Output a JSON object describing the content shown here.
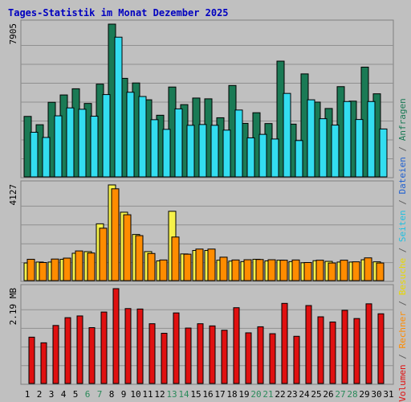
{
  "chart_data": {
    "type": "bar",
    "title": "Tages-Statistik im Monat Dezember 2025",
    "days": [
      "1",
      "2",
      "3",
      "4",
      "5",
      "6",
      "7",
      "8",
      "9",
      "10",
      "11",
      "12",
      "13",
      "14",
      "15",
      "16",
      "17",
      "18",
      "19",
      "20",
      "21",
      "22",
      "23",
      "24",
      "25",
      "26",
      "27",
      "28",
      "29",
      "30",
      "31"
    ],
    "weekend_days": [
      "6",
      "7",
      "13",
      "14",
      "20",
      "21",
      "27",
      "28"
    ],
    "panels": {
      "top": {
        "max_label": "7905",
        "max": 7905,
        "series": [
          {
            "name": "Anfragen",
            "color": "#1a7a55",
            "values": [
              3130,
              2700,
              3860,
              4240,
              4560,
              3800,
              4800,
              7905,
              5100,
              4860,
              3990,
              3190,
              4650,
              3740,
              4080,
              4040,
              3060,
              4730,
              2770,
              3320,
              2760,
              5990,
              2730,
              5330,
              3870,
              3540,
              4670,
              3920,
              5680,
              4300
            ]
          },
          {
            "name": "Seiten",
            "color": "#33ddf0",
            "values": [
              2310,
              2040,
              3160,
              3570,
              3500,
              3140,
              4260,
              7230,
              4380,
              4160,
              2960,
              2460,
              3520,
              2670,
              2710,
              2670,
              2420,
              3460,
              2020,
              2200,
              1960,
              4320,
              1880,
              3990,
              3010,
              2680,
              3900,
              2970,
              3900,
              2480
            ]
          }
        ]
      },
      "mid": {
        "max_label": "4127",
        "max": 4127,
        "series": [
          {
            "name": "Besuche",
            "color": "#f6f24a",
            "values": [
              760,
              800,
              800,
              920,
              1180,
              1250,
              2450,
              4127,
              2950,
              1990,
              1250,
              850,
              2990,
              1150,
              1300,
              1300,
              880,
              840,
              820,
              920,
              850,
              880,
              820,
              770,
              860,
              830,
              800,
              800,
              900,
              810
            ]
          },
          {
            "name": "Rechner",
            "color": "#ff8c00",
            "values": [
              920,
              780,
              930,
              970,
              1280,
              1190,
              2260,
              3960,
              2840,
              1940,
              1170,
              890,
              1880,
              1140,
              1360,
              1360,
              1010,
              890,
              900,
              910,
              900,
              880,
              890,
              780,
              880,
              760,
              880,
              810,
              980,
              760
            ]
          }
        ]
      },
      "bottom": {
        "max_label": "2.19 MB",
        "max": 2.19,
        "series": [
          {
            "name": "Volumen",
            "color": "#e01010",
            "values": [
              1.07,
              0.94,
              1.34,
              1.52,
              1.56,
              1.29,
              1.65,
              2.19,
              1.73,
              1.72,
              1.38,
              1.16,
              1.63,
              1.28,
              1.38,
              1.33,
              1.23,
              1.75,
              1.17,
              1.31,
              1.15,
              1.85,
              1.09,
              1.8,
              1.54,
              1.42,
              1.69,
              1.5,
              1.84,
              1.61
            ]
          }
        ]
      }
    },
    "right_label": [
      {
        "text": "Volumen",
        "color": "#e01010"
      },
      {
        "text": " / ",
        "color": "#606060"
      },
      {
        "text": "Rechner",
        "color": "#ff8c00"
      },
      {
        "text": " / ",
        "color": "#606060"
      },
      {
        "text": "Besuche",
        "color": "#e8d800"
      },
      {
        "text": " / ",
        "color": "#606060"
      },
      {
        "text": "Seiten",
        "color": "#20c0e0"
      },
      {
        "text": " / ",
        "color": "#606060"
      },
      {
        "text": "Dateien",
        "color": "#2060d0"
      },
      {
        "text": " / ",
        "color": "#606060"
      },
      {
        "text": "Anfragen",
        "color": "#1a7a55"
      }
    ],
    "colors": {
      "background": "#c0c0c0",
      "plot_background": "#c0c0c0",
      "grid": "#909090",
      "title": "#0000c0",
      "day_weekday": "#000000",
      "day_weekend": "#2a8a5a"
    }
  }
}
